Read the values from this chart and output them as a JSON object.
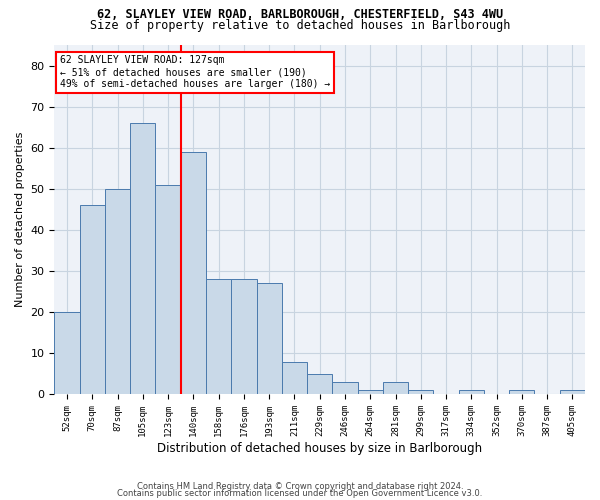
{
  "title1": "62, SLAYLEY VIEW ROAD, BARLBOROUGH, CHESTERFIELD, S43 4WU",
  "title2": "Size of property relative to detached houses in Barlborough",
  "xlabel": "Distribution of detached houses by size in Barlborough",
  "ylabel": "Number of detached properties",
  "bar_values": [
    20,
    46,
    50,
    66,
    51,
    59,
    28,
    28,
    27,
    8,
    5,
    3,
    1,
    3,
    1,
    0,
    1,
    0,
    1,
    0,
    1
  ],
  "bar_labels": [
    "52sqm",
    "70sqm",
    "87sqm",
    "105sqm",
    "123sqm",
    "140sqm",
    "158sqm",
    "176sqm",
    "193sqm",
    "211sqm",
    "229sqm",
    "246sqm",
    "264sqm",
    "281sqm",
    "299sqm",
    "317sqm",
    "334sqm",
    "352sqm",
    "370sqm",
    "387sqm",
    "405sqm"
  ],
  "bar_color": "#c9d9e8",
  "bar_edge_color": "#4a7aad",
  "ylim": [
    0,
    85
  ],
  "yticks": [
    0,
    10,
    20,
    30,
    40,
    50,
    60,
    70,
    80
  ],
  "annotation_line1": "62 SLAYLEY VIEW ROAD: 127sqm",
  "annotation_line2": "← 51% of detached houses are smaller (190)",
  "annotation_line3": "49% of semi-detached houses are larger (180) →",
  "vline_position": 4.5,
  "footer1": "Contains HM Land Registry data © Crown copyright and database right 2024.",
  "footer2": "Contains public sector information licensed under the Open Government Licence v3.0.",
  "bg_color": "#eef2f8",
  "grid_color": "#c8d4e0"
}
